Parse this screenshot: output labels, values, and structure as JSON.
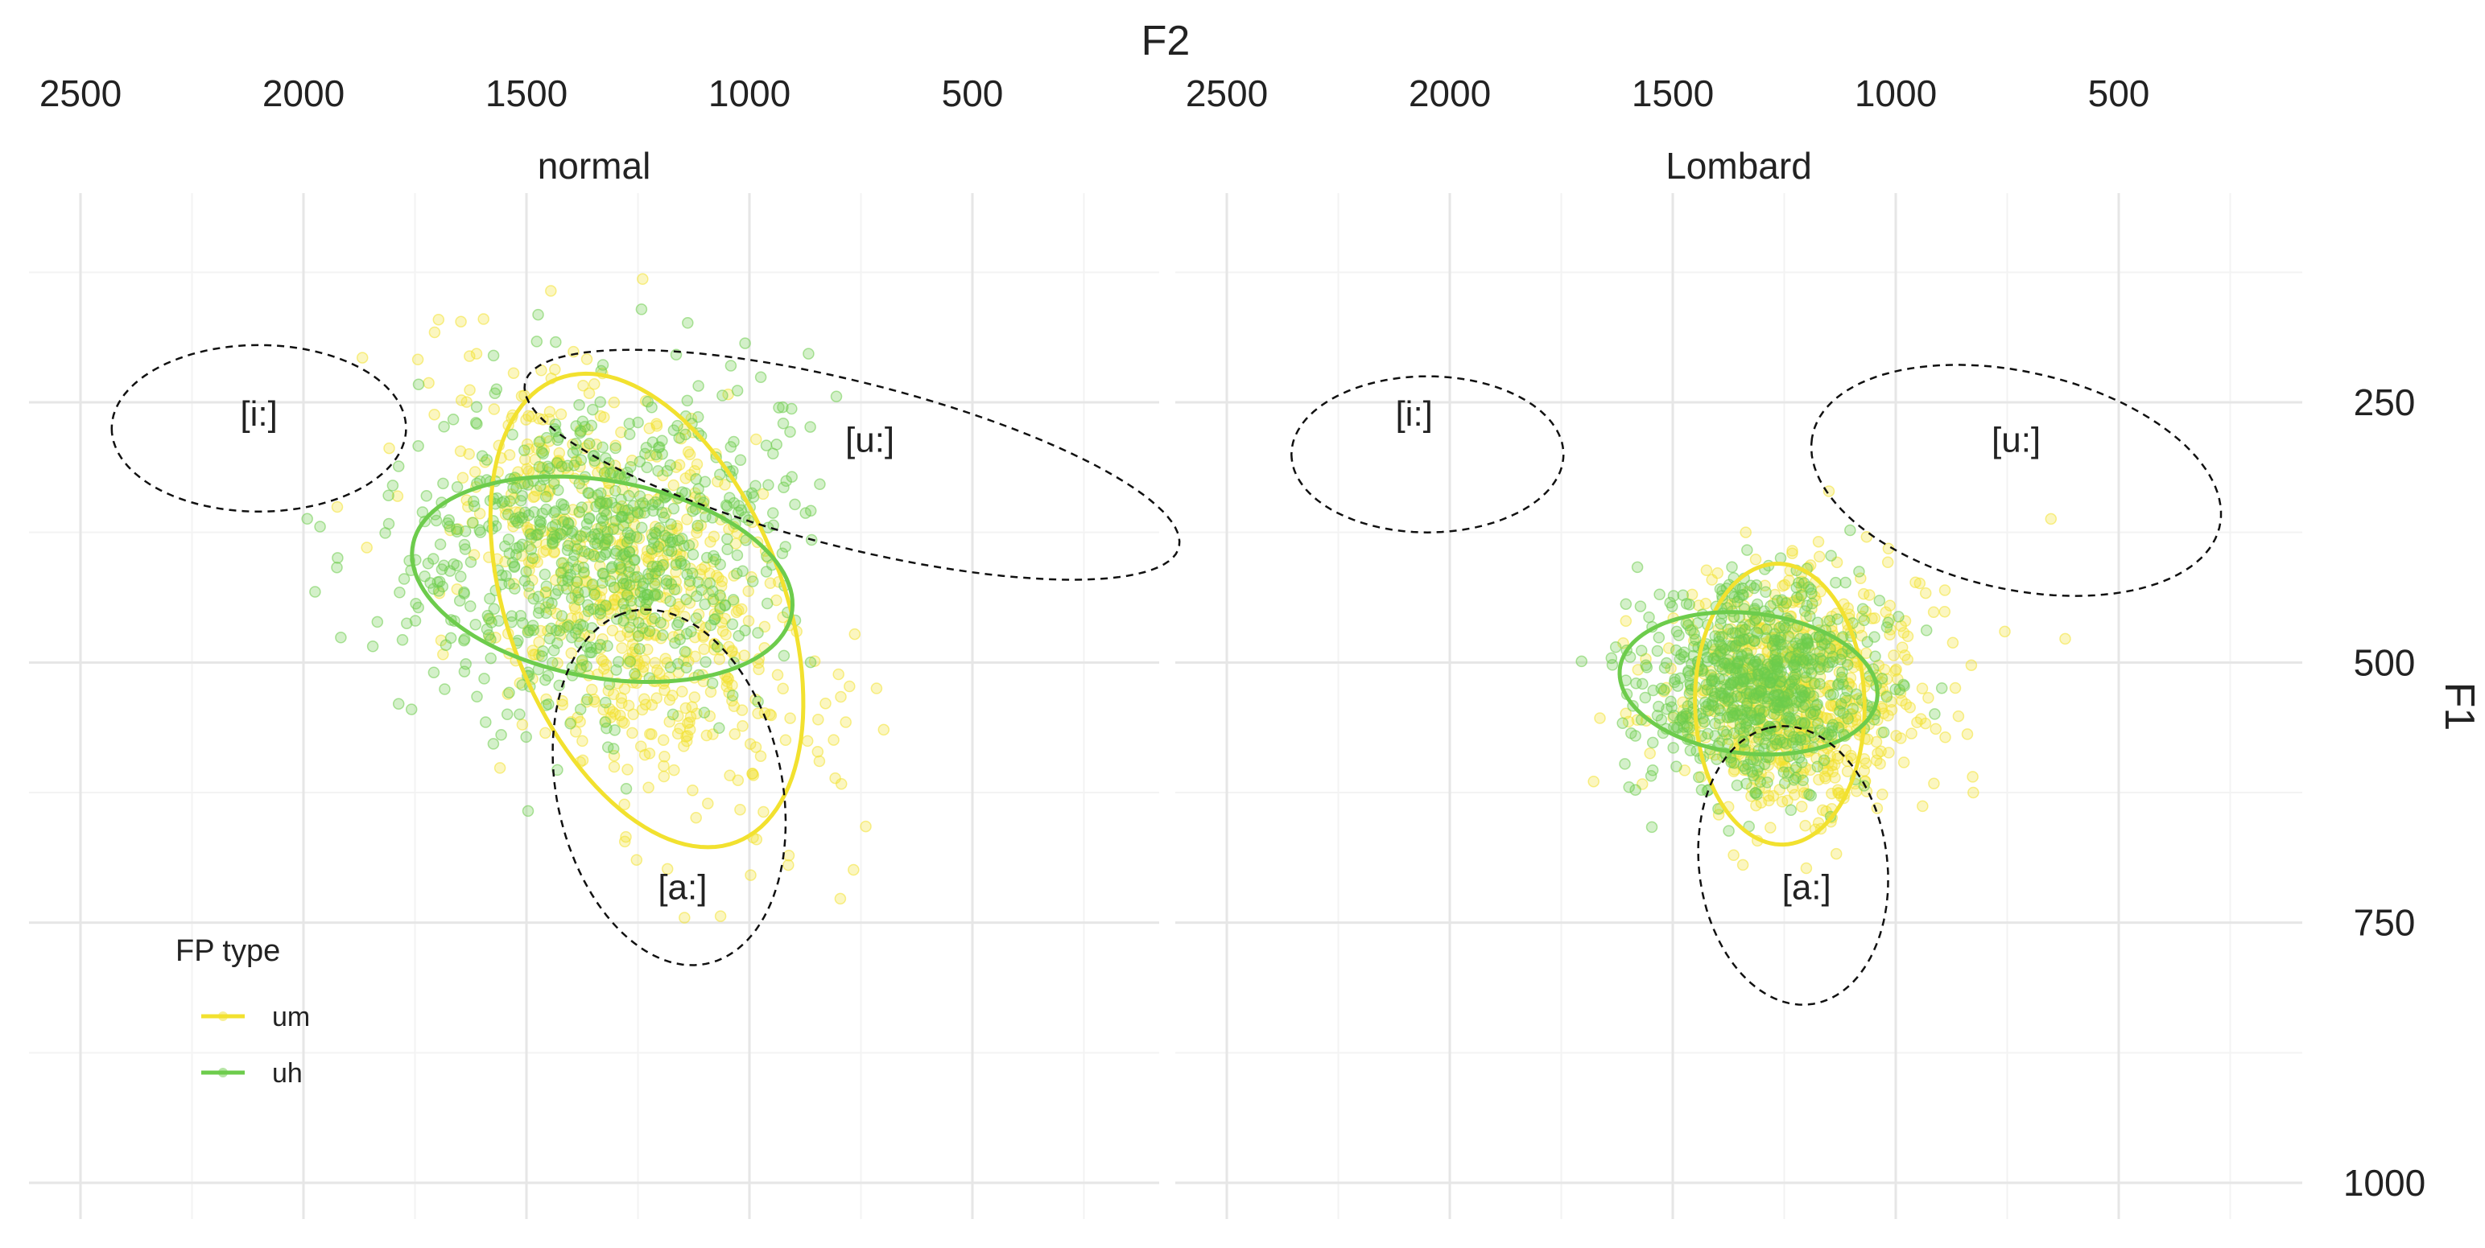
{
  "chart_data": {
    "type": "scatter",
    "x_title": "F2",
    "y_title": "F1",
    "x_ticks": [
      2500,
      2000,
      1500,
      1000,
      500
    ],
    "y_ticks": [
      250,
      500,
      750,
      1000
    ],
    "xlim": [
      2600,
      150
    ],
    "ylim": [
      1050,
      5
    ],
    "x_reversed": true,
    "y_reversed": true,
    "grid": true,
    "legend": {
      "title": "FP type",
      "position": "bottom-left-inside",
      "entries": [
        {
          "label": "um",
          "color": "#F2E12F"
        },
        {
          "label": "uh",
          "color": "#6DCC4C"
        }
      ]
    },
    "reference_vowels": [
      {
        "label": "[i:]",
        "style": "dashed"
      },
      {
        "label": "[u:]",
        "style": "dashed"
      },
      {
        "label": "[a:]",
        "style": "dashed"
      }
    ],
    "panels": [
      {
        "title": "normal",
        "series": [
          {
            "name": "um",
            "color": "#F2E12F",
            "point_count": 700,
            "f2_mean": 1280,
            "f2_sd": 200,
            "f1_mean": 430,
            "f1_sd": 105,
            "rho": -0.45,
            "ellipse": {
              "cx": 1230,
              "cy": 450,
              "rx": 490,
              "ry": 300,
              "angle": -62
            }
          },
          {
            "name": "uh",
            "color": "#6DCC4C",
            "point_count": 700,
            "f2_mean": 1350,
            "f2_sd": 220,
            "f1_mean": 390,
            "f1_sd": 75,
            "rho": 0.1,
            "ellipse": {
              "cx": 1330,
              "cy": 420,
              "rx": 430,
              "ry": 190,
              "angle": -8
            }
          }
        ],
        "vowels": [
          {
            "label": "[i:]",
            "cx": 2100,
            "cy": 275,
            "rx": 330,
            "ry": 160,
            "angle": 0,
            "label_f2": 2100,
            "label_f1": 260
          },
          {
            "label": "[u:]",
            "cx": 770,
            "cy": 310,
            "rx": 750,
            "ry": 160,
            "angle": -12,
            "label_f2": 730,
            "label_f1": 285
          },
          {
            "label": "[a:]",
            "cx": 1180,
            "cy": 620,
            "rx": 350,
            "ry": 250,
            "angle": -72,
            "label_f2": 1150,
            "label_f1": 715
          }
        ]
      },
      {
        "title": "Lombard",
        "series": [
          {
            "name": "um",
            "color": "#F2E12F",
            "point_count": 700,
            "f2_mean": 1220,
            "f2_sd": 145,
            "f1_mean": 530,
            "f1_sd": 60,
            "rho": 0.0,
            "ellipse": {
              "cx": 1260,
              "cy": 540,
              "rx": 270,
              "ry": 190,
              "angle": -88
            }
          },
          {
            "name": "uh",
            "color": "#6DCC4C",
            "point_count": 700,
            "f2_mean": 1310,
            "f2_sd": 125,
            "f1_mean": 520,
            "f1_sd": 50,
            "rho": 0.0,
            "ellipse": {
              "cx": 1330,
              "cy": 520,
              "rx": 290,
              "ry": 135,
              "angle": -5
            }
          }
        ],
        "vowels": [
          {
            "label": "[i:]",
            "cx": 2050,
            "cy": 300,
            "rx": 305,
            "ry": 150,
            "angle": 0,
            "label_f2": 2080,
            "label_f1": 260
          },
          {
            "label": "[u:]",
            "cx": 730,
            "cy": 325,
            "rx": 465,
            "ry": 210,
            "angle": -10,
            "label_f2": 730,
            "label_f1": 285
          },
          {
            "label": "[a:]",
            "cx": 1230,
            "cy": 695,
            "rx": 270,
            "ry": 210,
            "angle": -78,
            "label_f2": 1200,
            "label_f1": 715
          }
        ]
      }
    ]
  }
}
